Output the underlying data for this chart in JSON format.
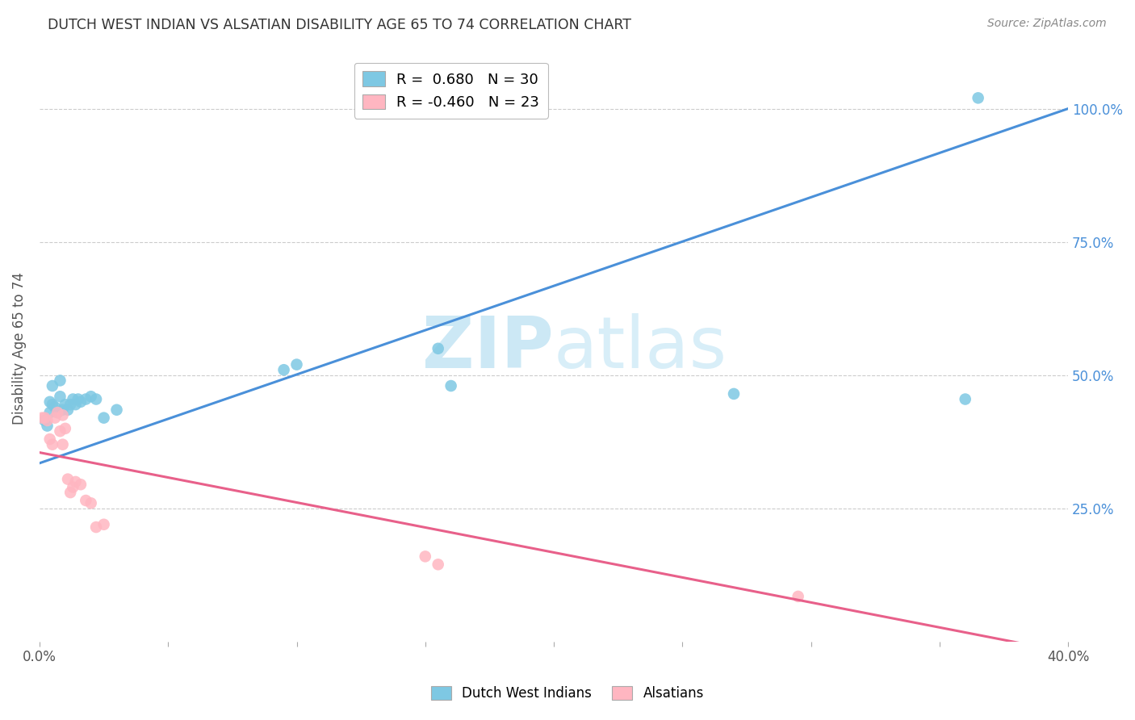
{
  "title": "DUTCH WEST INDIAN VS ALSATIAN DISABILITY AGE 65 TO 74 CORRELATION CHART",
  "source": "Source: ZipAtlas.com",
  "ylabel": "Disability Age 65 to 74",
  "xmin": 0.0,
  "xmax": 0.4,
  "ymin": 0.0,
  "ymax": 1.1,
  "ytick_positions": [
    0.25,
    0.5,
    0.75,
    1.0
  ],
  "ytick_labels": [
    "25.0%",
    "50.0%",
    "75.0%",
    "100.0%"
  ],
  "xtick_positions": [
    0.0,
    0.05,
    0.1,
    0.15,
    0.2,
    0.25,
    0.3,
    0.35,
    0.4
  ],
  "xtick_labels": [
    "0.0%",
    "",
    "",
    "",
    "",
    "",
    "",
    "",
    "40.0%"
  ],
  "legend_entry1_label": "R =  0.680   N = 30",
  "legend_entry2_label": "R = -0.460   N = 23",
  "scatter1_color": "#7ec8e3",
  "scatter2_color": "#ffb6c1",
  "trendline1_color": "#4a90d9",
  "trendline2_color": "#e8608a",
  "background_color": "#ffffff",
  "grid_color": "#cccccc",
  "watermark_color": "#cce8f5",
  "label1": "Dutch West Indians",
  "label2": "Alsatians",
  "trendline1_x0": 0.0,
  "trendline1_y0": 0.335,
  "trendline1_x1": 0.4,
  "trendline1_y1": 1.0,
  "trendline2_x0": 0.0,
  "trendline2_y0": 0.355,
  "trendline2_x1": 0.4,
  "trendline2_y1": -0.02,
  "dutch_x": [
    0.002,
    0.003,
    0.004,
    0.004,
    0.005,
    0.005,
    0.006,
    0.007,
    0.008,
    0.008,
    0.009,
    0.01,
    0.011,
    0.012,
    0.013,
    0.014,
    0.015,
    0.016,
    0.018,
    0.02,
    0.022,
    0.025,
    0.03,
    0.095,
    0.1,
    0.155,
    0.16,
    0.27,
    0.36,
    0.365
  ],
  "dutch_y": [
    0.415,
    0.405,
    0.43,
    0.45,
    0.445,
    0.48,
    0.44,
    0.43,
    0.46,
    0.49,
    0.435,
    0.445,
    0.435,
    0.445,
    0.455,
    0.445,
    0.455,
    0.45,
    0.455,
    0.46,
    0.455,
    0.42,
    0.435,
    0.51,
    0.52,
    0.55,
    0.48,
    0.465,
    0.455,
    1.02
  ],
  "alsatian_x": [
    0.001,
    0.002,
    0.003,
    0.004,
    0.005,
    0.006,
    0.007,
    0.008,
    0.009,
    0.009,
    0.01,
    0.011,
    0.012,
    0.013,
    0.014,
    0.016,
    0.018,
    0.02,
    0.022,
    0.025,
    0.15,
    0.155,
    0.295
  ],
  "alsatian_y": [
    0.42,
    0.42,
    0.415,
    0.38,
    0.37,
    0.42,
    0.43,
    0.395,
    0.37,
    0.425,
    0.4,
    0.305,
    0.28,
    0.29,
    0.3,
    0.295,
    0.265,
    0.26,
    0.215,
    0.22,
    0.16,
    0.145,
    0.085
  ]
}
